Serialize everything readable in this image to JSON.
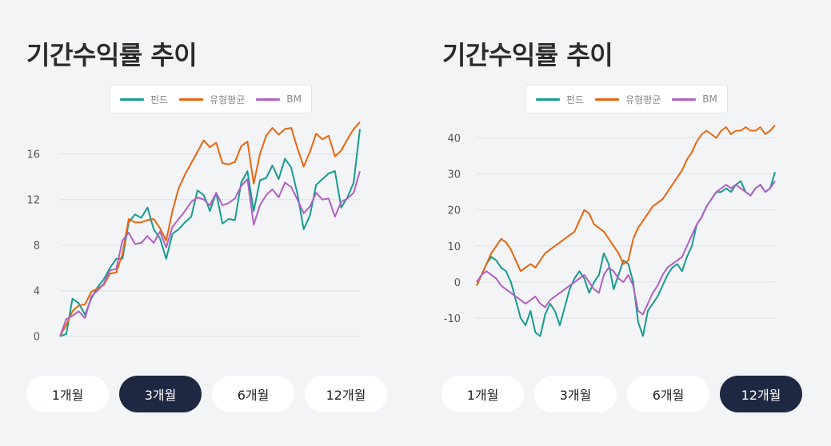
{
  "panels": [
    {
      "title": "기간수익률 추이",
      "legend": [
        {
          "label": "펀드",
          "color": "#169c8f"
        },
        {
          "label": "유형평균",
          "color": "#e8650f"
        },
        {
          "label": "BM",
          "color": "#b160c4"
        }
      ],
      "buttons": [
        "1개월",
        "3개월",
        "6개월",
        "12개월"
      ],
      "active_button": "3개월"
    },
    {
      "title": "기간수익률 추이",
      "legend": [
        {
          "label": "펀드",
          "color": "#169c8f"
        },
        {
          "label": "유형평균",
          "color": "#e8650f"
        },
        {
          "label": "BM",
          "color": "#b160c4"
        }
      ],
      "buttons": [
        "1개월",
        "3개월",
        "6개월",
        "12개월"
      ],
      "active_button": "12개월"
    }
  ],
  "chart_data": [
    {
      "type": "line",
      "title": "기간수익률 추이",
      "yticks": [
        0,
        4,
        8,
        12,
        16
      ],
      "ylim": [
        -0.3,
        19
      ],
      "grid": true,
      "legend_position": "top-center",
      "series": [
        {
          "name": "펀드",
          "color": "#169c8f",
          "values": [
            0,
            0.2,
            3.3,
            2.9,
            1.9,
            3.3,
            4.3,
            5.0,
            6.0,
            6.8,
            6.8,
            10.0,
            10.7,
            10.4,
            11.3,
            9.4,
            8.6,
            6.8,
            9.0,
            9.4,
            10.0,
            10.5,
            12.8,
            12.4,
            11.0,
            12.6,
            9.9,
            10.3,
            10.2,
            13.5,
            14.5,
            11.0,
            13.7,
            13.9,
            15.0,
            13.8,
            15.6,
            14.8,
            12.5,
            9.4,
            10.6,
            13.3,
            13.8,
            14.3,
            14.5,
            11.3,
            12.2,
            13.5,
            18.2
          ]
        },
        {
          "name": "유형평균",
          "color": "#e8650f",
          "values": [
            0,
            1.0,
            2.2,
            2.7,
            2.8,
            3.9,
            4.2,
            4.5,
            5.5,
            5.6,
            7.2,
            10.3,
            10.0,
            10.0,
            10.2,
            10.3,
            9.5,
            8.4,
            11.0,
            13.0,
            14.2,
            15.2,
            16.2,
            17.2,
            16.6,
            17.0,
            15.2,
            15.1,
            15.3,
            16.7,
            17.1,
            13.4,
            16.0,
            17.6,
            18.3,
            17.7,
            18.2,
            18.3,
            16.5,
            14.9,
            16.2,
            17.8,
            17.3,
            17.6,
            15.8,
            16.3,
            17.3,
            18.2,
            18.8
          ]
        },
        {
          "name": "BM",
          "color": "#b160c4",
          "values": [
            0,
            1.5,
            1.8,
            2.2,
            1.6,
            3.5,
            4.0,
            4.6,
            5.8,
            5.9,
            8.4,
            9.1,
            8.1,
            8.2,
            8.8,
            8.2,
            9.2,
            7.8,
            9.6,
            10.3,
            11.0,
            11.8,
            12.2,
            12.0,
            11.5,
            12.6,
            11.5,
            11.7,
            12.1,
            13.2,
            13.8,
            9.8,
            11.5,
            12.4,
            12.9,
            12.2,
            13.5,
            13.1,
            12.0,
            10.8,
            11.4,
            12.6,
            12.0,
            12.1,
            10.5,
            11.8,
            12.1,
            12.6,
            14.5
          ]
        }
      ]
    },
    {
      "type": "line",
      "title": "기간수익률 추이",
      "yticks": [
        -10,
        0,
        10,
        20,
        30,
        40
      ],
      "ylim": [
        -16,
        45
      ],
      "grid": true,
      "legend_position": "top-center",
      "series": [
        {
          "name": "펀드",
          "color": "#169c8f",
          "values": [
            -1,
            2,
            5,
            7,
            6,
            4,
            3,
            0,
            -5,
            -10,
            -12,
            -8,
            -14,
            -15,
            -9,
            -6,
            -8,
            -12,
            -7,
            -2,
            1,
            3,
            1,
            -3,
            0,
            2,
            8,
            5,
            -2,
            2,
            6,
            5,
            0,
            -11,
            -15,
            -8,
            -6,
            -4,
            -1,
            2,
            4,
            5,
            3,
            7,
            10,
            16,
            18,
            21,
            23,
            25,
            25,
            26,
            25,
            27,
            28,
            25,
            24,
            26,
            27,
            25,
            26,
            30.5
          ]
        },
        {
          "name": "유형평균",
          "color": "#e8650f",
          "values": [
            -1,
            2,
            5,
            8,
            10,
            12,
            11,
            9,
            6,
            3,
            4,
            5,
            4,
            6,
            8,
            9,
            10,
            11,
            12,
            13,
            14,
            17,
            20,
            19,
            16,
            15,
            14,
            12,
            10,
            8,
            5,
            6,
            12,
            15,
            17,
            19,
            21,
            22,
            23,
            25,
            27,
            29,
            31,
            34,
            36,
            39,
            41,
            42,
            41,
            40,
            42,
            43,
            41,
            42,
            42,
            43,
            42,
            42,
            43,
            41,
            42,
            43.5
          ]
        },
        {
          "name": "BM",
          "color": "#b160c4",
          "values": [
            0,
            2,
            3,
            2,
            1,
            -1,
            -2,
            -3,
            -4,
            -5,
            -6,
            -5,
            -4,
            -6,
            -7,
            -5,
            -4,
            -3,
            -2,
            -1,
            0,
            1,
            2,
            0,
            -2,
            -3,
            2,
            4,
            3,
            1,
            0,
            2,
            -1,
            -8,
            -9,
            -6,
            -3,
            -1,
            2,
            4,
            5,
            6,
            7,
            10,
            13,
            16,
            18,
            21,
            23,
            25,
            26,
            27,
            26,
            27,
            26,
            25,
            24,
            26,
            27,
            25,
            26,
            28
          ]
        }
      ]
    }
  ]
}
